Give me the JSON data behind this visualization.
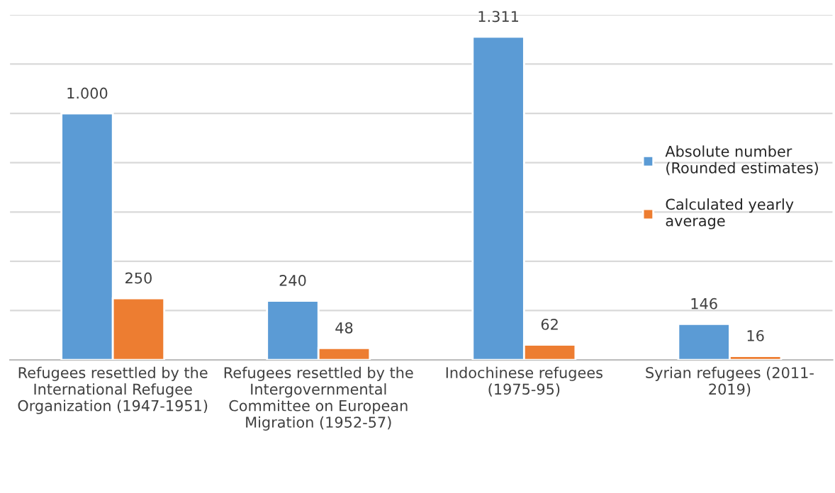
{
  "chart_data": {
    "type": "bar",
    "categories": [
      "Refugees resettled by the\nInternational Refugee\nOrganization (1947-1951)",
      "Refugees resettled by the\nIntergovernmental\nCommittee on European\nMigration (1952-57)",
      "Indochinese refugees\n(1975-95)",
      "Syrian refugees (2011-\n2019)"
    ],
    "series": [
      {
        "name": "Absolute number\n(Rounded estimates)",
        "color": "#5b9bd5",
        "values": [
          1000,
          240,
          1311,
          146
        ],
        "value_labels": [
          "1.000",
          "240",
          "1.311",
          "146"
        ]
      },
      {
        "name": "Calculated yearly\naverage",
        "color": "#ed7d31",
        "values": [
          250,
          48,
          62,
          16
        ],
        "value_labels": [
          "250",
          "48",
          "62",
          "16"
        ]
      }
    ],
    "ylim": [
      0,
      1400
    ],
    "yticks": [
      {
        "value": 0,
        "label": null
      },
      {
        "value": 200,
        "label": null
      },
      {
        "value": 400,
        "label": null
      },
      {
        "value": 600,
        "label": null
      },
      {
        "value": 800,
        "label": null
      },
      {
        "value": 1000,
        "label": null
      },
      {
        "value": 1200,
        "label": null
      },
      {
        "value": 1400,
        "label": null
      }
    ],
    "grid": "y",
    "legend": "right",
    "tick_labels": "x"
  }
}
